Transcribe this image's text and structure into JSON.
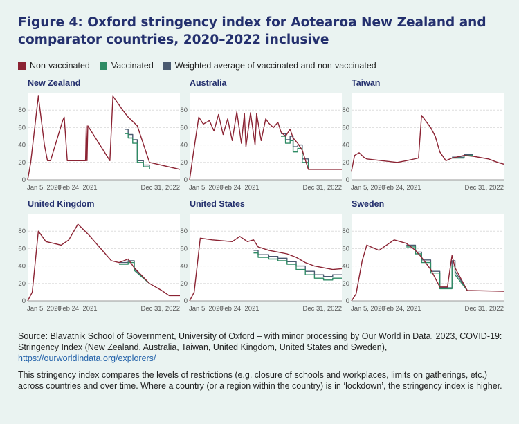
{
  "title": "Figure 4: Oxford stringency index for Aotearoa New Zealand and comparator countries, 2020–2022 inclusive",
  "colors": {
    "nonvax": "#8b2333",
    "vax": "#2e8b64",
    "weighted": "#4a5a70"
  },
  "legend": [
    {
      "label": "Non-vaccinated",
      "color": "#8b2333"
    },
    {
      "label": "Vaccinated",
      "color": "#2e8b64"
    },
    {
      "label": "Weighted average of vaccinated and non-vaccinated",
      "color": "#4a5a70"
    }
  ],
  "chart_data": [
    {
      "type": "line",
      "title": "New Zealand",
      "x_ticks": [
        "Jan 5, 2020",
        "Feb 24, 2021",
        "Dec 31, 2022"
      ],
      "y_ticks": [
        0,
        20,
        40,
        60,
        80
      ],
      "ylim": [
        0,
        100
      ],
      "series": [
        {
          "name": "Non-vaccinated",
          "x": [
            0,
            0.02,
            0.02,
            0.07,
            0.07,
            0.11,
            0.11,
            0.13,
            0.13,
            0.15,
            0.15,
            0.23,
            0.23,
            0.24,
            0.24,
            0.26,
            0.26,
            0.38,
            0.38,
            0.385,
            0.385,
            0.39,
            0.39,
            0.395,
            0.395,
            0.54,
            0.54,
            0.56,
            0.56,
            0.62,
            0.62,
            0.66,
            0.66,
            0.72,
            0.72,
            0.8,
            0.8,
            1
          ],
          "y": [
            0,
            20,
            20,
            96,
            96,
            40,
            40,
            22,
            22,
            22,
            22,
            68,
            68,
            72,
            72,
            22,
            22,
            22,
            22,
            62,
            62,
            22,
            22,
            62,
            62,
            22,
            22,
            96,
            96,
            81,
            81,
            72,
            72,
            62,
            62,
            20,
            20,
            12
          ]
        },
        {
          "name": "Vaccinated",
          "x": [
            0.64,
            0.66,
            0.66,
            0.69,
            0.69,
            0.72,
            0.72,
            0.76,
            0.76,
            0.8,
            0.8
          ],
          "y": [
            53,
            53,
            48,
            48,
            42,
            42,
            20,
            20,
            15,
            15,
            12
          ]
        },
        {
          "name": "Weighted average of vaccinated and non-vaccinated",
          "x": [
            0.64,
            0.66,
            0.66,
            0.69,
            0.69,
            0.72,
            0.72,
            0.76,
            0.76,
            0.8,
            0.8
          ],
          "y": [
            58,
            58,
            52,
            52,
            46,
            46,
            22,
            22,
            17,
            17,
            12
          ]
        }
      ]
    },
    {
      "type": "line",
      "title": "Australia",
      "x_ticks": [
        "Jan 5, 2020",
        "Feb 24, 2021",
        "Dec 31, 2022"
      ],
      "y_ticks": [
        0,
        20,
        40,
        60,
        80
      ],
      "ylim": [
        0,
        100
      ],
      "series": [
        {
          "name": "Non-vaccinated",
          "x": [
            0,
            0.02,
            0.02,
            0.06,
            0.06,
            0.09,
            0.09,
            0.13,
            0.13,
            0.16,
            0.16,
            0.19,
            0.19,
            0.22,
            0.22,
            0.25,
            0.25,
            0.28,
            0.28,
            0.31,
            0.31,
            0.34,
            0.34,
            0.36,
            0.36,
            0.37,
            0.37,
            0.4,
            0.4,
            0.43,
            0.43,
            0.44,
            0.44,
            0.47,
            0.47,
            0.5,
            0.5,
            0.52,
            0.52,
            0.55,
            0.55,
            0.58,
            0.58,
            0.6,
            0.6,
            0.63,
            0.63,
            0.66,
            0.66,
            0.68,
            0.68,
            0.71,
            0.71,
            0.74,
            0.74,
            0.78,
            0.78,
            0.8,
            0.8,
            1
          ],
          "y": [
            0,
            25,
            25,
            72,
            72,
            64,
            64,
            68,
            68,
            56,
            56,
            75,
            75,
            52,
            52,
            70,
            70,
            45,
            45,
            78,
            78,
            42,
            42,
            76,
            76,
            38,
            38,
            77,
            77,
            40,
            40,
            76,
            76,
            45,
            45,
            70,
            70,
            65,
            65,
            60,
            60,
            66,
            66,
            55,
            55,
            50,
            50,
            58,
            58,
            48,
            48,
            42,
            42,
            34,
            34,
            12,
            12,
            12,
            12,
            12
          ]
        },
        {
          "name": "Vaccinated",
          "x": [
            0.6,
            0.63,
            0.63,
            0.66,
            0.66,
            0.68,
            0.68,
            0.71,
            0.71,
            0.74,
            0.74,
            0.78,
            0.78
          ],
          "y": [
            50,
            50,
            42,
            42,
            45,
            45,
            32,
            32,
            36,
            36,
            20,
            20,
            12
          ]
        },
        {
          "name": "Weighted average of vaccinated and non-vaccinated",
          "x": [
            0.6,
            0.63,
            0.63,
            0.66,
            0.66,
            0.68,
            0.68,
            0.71,
            0.71,
            0.74,
            0.74,
            0.78,
            0.78
          ],
          "y": [
            53,
            53,
            46,
            46,
            50,
            50,
            38,
            38,
            40,
            40,
            24,
            24,
            12
          ]
        }
      ]
    },
    {
      "type": "line",
      "title": "Taiwan",
      "x_ticks": [
        "Jan 5, 2020",
        "Feb 24, 2021",
        "Dec 31, 2022"
      ],
      "y_ticks": [
        0,
        20,
        40,
        60,
        80
      ],
      "ylim": [
        0,
        100
      ],
      "series": [
        {
          "name": "Non-vaccinated",
          "x": [
            0,
            0.02,
            0.02,
            0.05,
            0.05,
            0.08,
            0.08,
            0.1,
            0.1,
            0.3,
            0.3,
            0.36,
            0.36,
            0.44,
            0.44,
            0.46,
            0.46,
            0.52,
            0.52,
            0.55,
            0.55,
            0.58,
            0.58,
            0.62,
            0.62,
            0.66,
            0.66,
            0.74,
            0.74,
            0.8,
            0.8,
            0.9,
            0.9,
            0.96,
            0.96,
            1
          ],
          "y": [
            10,
            28,
            28,
            31,
            31,
            26,
            26,
            24,
            24,
            20,
            20,
            22,
            22,
            25,
            25,
            74,
            74,
            60,
            60,
            50,
            50,
            32,
            32,
            22,
            22,
            25,
            25,
            28,
            28,
            27,
            27,
            24,
            24,
            20,
            20,
            18
          ]
        },
        {
          "name": "Vaccinated",
          "x": [
            0.66,
            0.74,
            0.74,
            0.8
          ],
          "y": [
            25,
            25,
            28,
            28
          ]
        },
        {
          "name": "Weighted average of vaccinated and non-vaccinated",
          "x": [
            0.66,
            0.74,
            0.74,
            0.8
          ],
          "y": [
            26,
            26,
            29,
            29
          ]
        }
      ]
    },
    {
      "type": "line",
      "title": "United Kingdom",
      "x_ticks": [
        "Jan 5, 2020",
        "Feb 24, 2021",
        "Dec 31, 2022"
      ],
      "y_ticks": [
        0,
        20,
        40,
        60,
        80
      ],
      "ylim": [
        0,
        100
      ],
      "series": [
        {
          "name": "Non-vaccinated",
          "x": [
            0,
            0.03,
            0.03,
            0.07,
            0.07,
            0.12,
            0.12,
            0.17,
            0.17,
            0.22,
            0.22,
            0.27,
            0.27,
            0.33,
            0.33,
            0.4,
            0.4,
            0.48,
            0.48,
            0.55,
            0.55,
            0.6,
            0.6,
            0.66,
            0.66,
            0.7,
            0.7,
            0.8,
            0.8,
            0.88,
            0.88,
            0.93,
            0.93,
            1
          ],
          "y": [
            0,
            10,
            10,
            80,
            80,
            68,
            68,
            66,
            66,
            64,
            64,
            70,
            70,
            88,
            88,
            76,
            76,
            60,
            60,
            46,
            46,
            44,
            44,
            48,
            48,
            38,
            38,
            20,
            20,
            12,
            12,
            6,
            6,
            6
          ]
        },
        {
          "name": "Vaccinated",
          "x": [
            0.6,
            0.66,
            0.66,
            0.7,
            0.7,
            0.8
          ],
          "y": [
            42,
            42,
            44,
            44,
            35,
            20
          ]
        },
        {
          "name": "Weighted average of vaccinated and non-vaccinated",
          "x": [
            0.6,
            0.66,
            0.66,
            0.7,
            0.7,
            0.8
          ],
          "y": [
            44,
            44,
            46,
            46,
            37,
            20
          ]
        }
      ]
    },
    {
      "type": "line",
      "title": "United States",
      "x_ticks": [
        "Jan 5, 2020",
        "Feb 24, 2021",
        "Dec 31, 2022"
      ],
      "y_ticks": [
        0,
        20,
        40,
        60,
        80
      ],
      "ylim": [
        0,
        100
      ],
      "series": [
        {
          "name": "Non-vaccinated",
          "x": [
            0,
            0.03,
            0.03,
            0.07,
            0.07,
            0.15,
            0.15,
            0.28,
            0.28,
            0.33,
            0.33,
            0.38,
            0.38,
            0.42,
            0.42,
            0.45,
            0.45,
            0.52,
            0.52,
            0.58,
            0.58,
            0.64,
            0.64,
            0.7,
            0.7,
            0.76,
            0.76,
            0.82,
            0.82,
            0.88,
            0.88,
            0.94,
            0.94,
            1
          ],
          "y": [
            0,
            10,
            10,
            72,
            72,
            70,
            70,
            68,
            68,
            74,
            74,
            68,
            68,
            70,
            70,
            62,
            62,
            58,
            58,
            56,
            56,
            54,
            54,
            50,
            50,
            44,
            44,
            40,
            40,
            38,
            38,
            36,
            36,
            37
          ]
        },
        {
          "name": "Vaccinated",
          "x": [
            0.42,
            0.45,
            0.45,
            0.52,
            0.52,
            0.58,
            0.58,
            0.64,
            0.64,
            0.7,
            0.7,
            0.76,
            0.76,
            0.82,
            0.82,
            0.88,
            0.88,
            0.94,
            0.94,
            1
          ],
          "y": [
            55,
            55,
            50,
            50,
            48,
            48,
            46,
            46,
            42,
            42,
            36,
            36,
            30,
            30,
            26,
            26,
            24,
            24,
            26,
            26
          ]
        },
        {
          "name": "Weighted average of vaccinated and non-vaccinated",
          "x": [
            0.42,
            0.45,
            0.45,
            0.52,
            0.52,
            0.58,
            0.58,
            0.64,
            0.64,
            0.7,
            0.7,
            0.76,
            0.76,
            0.82,
            0.82,
            0.88,
            0.88,
            0.94,
            0.94,
            1
          ],
          "y": [
            58,
            58,
            53,
            53,
            51,
            51,
            49,
            49,
            45,
            45,
            40,
            40,
            34,
            34,
            30,
            30,
            28,
            28,
            30,
            30
          ]
        }
      ]
    },
    {
      "type": "line",
      "title": "Sweden",
      "x_ticks": [
        "Jan 5, 2020",
        "Feb 24, 2021",
        "Dec 31, 2022"
      ],
      "y_ticks": [
        0,
        20,
        40,
        60,
        80
      ],
      "ylim": [
        0,
        100
      ],
      "series": [
        {
          "name": "Non-vaccinated",
          "x": [
            0,
            0.03,
            0.03,
            0.07,
            0.07,
            0.1,
            0.1,
            0.18,
            0.18,
            0.28,
            0.28,
            0.36,
            0.36,
            0.42,
            0.42,
            0.46,
            0.46,
            0.52,
            0.52,
            0.58,
            0.58,
            0.63,
            0.63,
            0.66,
            0.66,
            0.68,
            0.68,
            0.76,
            0.76,
            1
          ],
          "y": [
            0,
            8,
            8,
            46,
            46,
            64,
            64,
            58,
            58,
            70,
            70,
            66,
            66,
            58,
            58,
            50,
            50,
            36,
            36,
            16,
            16,
            16,
            16,
            52,
            52,
            38,
            38,
            12,
            12,
            11
          ]
        },
        {
          "name": "Vaccinated",
          "x": [
            0.36,
            0.42,
            0.42,
            0.46,
            0.46,
            0.52,
            0.52,
            0.58,
            0.58,
            0.63,
            0.63,
            0.66,
            0.66,
            0.68,
            0.68,
            0.76
          ],
          "y": [
            62,
            62,
            54,
            54,
            44,
            44,
            32,
            32,
            14,
            14,
            14,
            14,
            40,
            40,
            30,
            12
          ]
        },
        {
          "name": "Weighted average of vaccinated and non-vaccinated",
          "x": [
            0.36,
            0.42,
            0.42,
            0.46,
            0.46,
            0.52,
            0.52,
            0.58,
            0.58,
            0.63,
            0.63,
            0.66,
            0.66,
            0.68,
            0.68,
            0.76
          ],
          "y": [
            64,
            64,
            56,
            56,
            47,
            47,
            34,
            34,
            15,
            15,
            15,
            15,
            46,
            46,
            34,
            12
          ]
        }
      ]
    }
  ],
  "source": {
    "text": "Source: Blavatnik School of Government, University of Oxford – with minor processing by Our World in Data, 2023, COVID-19: Stringency Index (New Zealand, Australia, Taiwan, United Kingdom, United States and Sweden), ",
    "link": "https://ourworldindata.org/explorers/"
  },
  "note": "This stringency index compares the levels of restrictions (e.g. closure of schools and workplaces, limits on gatherings, etc.) across countries and over time. Where a country (or a region within the country) is in ‘lockdown’, the stringency index is higher."
}
